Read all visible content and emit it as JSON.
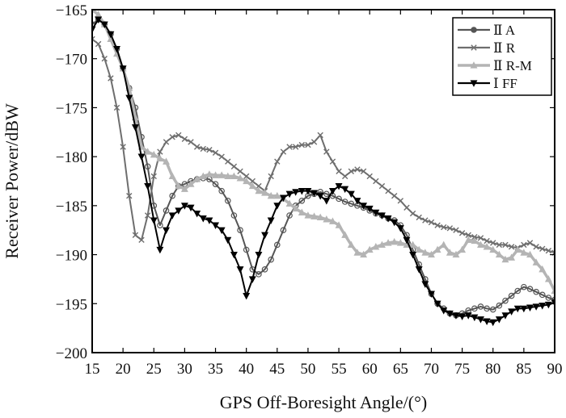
{
  "chart_data": {
    "type": "line",
    "xlabel": "GPS Off-Boresight Angle/(°)",
    "ylabel": "Receiver Power/dBW",
    "xlim": [
      15,
      90
    ],
    "ylim": [
      -200,
      -165
    ],
    "x_ticks": [
      "15",
      "20",
      "25",
      "30",
      "35",
      "40",
      "45",
      "50",
      "55",
      "60",
      "65",
      "70",
      "75",
      "80",
      "85",
      "90"
    ],
    "y_ticks": [
      "-165",
      "-170",
      "-175",
      "-180",
      "-185",
      "-190",
      "-195",
      "-200"
    ],
    "grid": false,
    "legend": "top-right",
    "series": [
      {
        "name": "Ⅱ A",
        "color": "#555555",
        "marker": "circle",
        "x": [
          15,
          16,
          17,
          18,
          19,
          20,
          21,
          22,
          23,
          24,
          25,
          26,
          27,
          28,
          29,
          30,
          31,
          32,
          33,
          34,
          35,
          36,
          37,
          38,
          39,
          40,
          41,
          42,
          43,
          44,
          45,
          46,
          47,
          48,
          49,
          50,
          51,
          52,
          53,
          54,
          55,
          56,
          57,
          58,
          59,
          60,
          61,
          62,
          63,
          64,
          65,
          66,
          67,
          68,
          69,
          70,
          71,
          72,
          73,
          74,
          75,
          76,
          77,
          78,
          79,
          80,
          81,
          82,
          83,
          84,
          85,
          86,
          87,
          88,
          89,
          90
        ],
        "y": [
          -166.5,
          -166,
          -166.5,
          -167.5,
          -169,
          -171,
          -173,
          -175,
          -178,
          -181,
          -185,
          -187,
          -185.5,
          -184,
          -183,
          -182.8,
          -182.5,
          -182.3,
          -182.2,
          -182.3,
          -182.8,
          -183.5,
          -184.5,
          -186,
          -187.5,
          -189.5,
          -191.5,
          -192,
          -191.5,
          -190.5,
          -189,
          -187.5,
          -186,
          -185,
          -184.5,
          -184,
          -183.8,
          -183.6,
          -183.8,
          -184,
          -184.3,
          -184.6,
          -184.8,
          -185,
          -185.2,
          -185.5,
          -185.8,
          -186,
          -186.3,
          -186.5,
          -187,
          -188,
          -189.5,
          -191,
          -192.5,
          -194,
          -195,
          -195.5,
          -196,
          -196.2,
          -196,
          -195.7,
          -195.5,
          -195.3,
          -195.5,
          -195.6,
          -195.2,
          -194.7,
          -194.2,
          -193.7,
          -193.3,
          -193.5,
          -193.8,
          -194.1,
          -194.4,
          -194.6
        ]
      },
      {
        "name": "Ⅱ R",
        "color": "#6e6e6e",
        "marker": "x",
        "x": [
          15,
          16,
          17,
          18,
          19,
          20,
          21,
          22,
          23,
          24,
          25,
          26,
          27,
          28,
          29,
          30,
          31,
          32,
          33,
          34,
          35,
          36,
          37,
          38,
          39,
          40,
          41,
          42,
          43,
          44,
          45,
          46,
          47,
          48,
          49,
          50,
          51,
          52,
          53,
          54,
          55,
          56,
          57,
          58,
          59,
          60,
          61,
          62,
          63,
          64,
          65,
          66,
          67,
          68,
          69,
          70,
          71,
          72,
          73,
          74,
          75,
          76,
          77,
          78,
          79,
          80,
          81,
          82,
          83,
          84,
          85,
          86,
          87,
          88,
          89,
          90
        ],
        "y": [
          -168,
          -168.5,
          -170,
          -172,
          -175,
          -179,
          -184,
          -188,
          -188.5,
          -186,
          -182,
          -179.5,
          -178.5,
          -178,
          -177.8,
          -178.2,
          -178.5,
          -179,
          -179.2,
          -179.3,
          -179.6,
          -180,
          -180.5,
          -181,
          -181.5,
          -182,
          -182.5,
          -183,
          -183.5,
          -182,
          -180.5,
          -179.5,
          -179,
          -179,
          -178.8,
          -178.8,
          -178.5,
          -177.8,
          -179.5,
          -180.5,
          -181.5,
          -182,
          -181.5,
          -181.3,
          -181.5,
          -182,
          -182.5,
          -183,
          -183.5,
          -184,
          -184.5,
          -185.2,
          -185.8,
          -186.2,
          -186.5,
          -186.7,
          -187,
          -187.2,
          -187.3,
          -187.5,
          -187.8,
          -188,
          -188.2,
          -188.3,
          -188.6,
          -188.8,
          -189,
          -189,
          -189.2,
          -189.3,
          -189,
          -188.8,
          -189.2,
          -189.4,
          -189.6,
          -189.8
        ]
      },
      {
        "name": "Ⅱ R-M",
        "color": "#b4b4b4",
        "marker": "triangle",
        "x": [
          15,
          16,
          17,
          18,
          19,
          20,
          21,
          22,
          23,
          24,
          25,
          26,
          27,
          28,
          29,
          30,
          31,
          32,
          33,
          34,
          35,
          36,
          37,
          38,
          39,
          40,
          41,
          42,
          43,
          44,
          45,
          46,
          47,
          48,
          49,
          50,
          51,
          52,
          53,
          54,
          55,
          56,
          57,
          58,
          59,
          60,
          61,
          62,
          63,
          64,
          65,
          66,
          67,
          68,
          69,
          70,
          71,
          72,
          73,
          74,
          75,
          76,
          77,
          78,
          79,
          80,
          81,
          82,
          83,
          84,
          85,
          86,
          87,
          88,
          89,
          90
        ],
        "y": [
          -165,
          -165.5,
          -166.5,
          -168,
          -169.5,
          -171,
          -173,
          -176,
          -179,
          -179.5,
          -179.8,
          -180.2,
          -180.5,
          -182,
          -183,
          -183.3,
          -182.8,
          -182.3,
          -182,
          -181.8,
          -181.9,
          -181.9,
          -182,
          -182,
          -182.2,
          -182.5,
          -183,
          -183.5,
          -183.7,
          -184,
          -184,
          -184.3,
          -184.8,
          -185.3,
          -185.7,
          -186,
          -186.1,
          -186.2,
          -186.4,
          -186.6,
          -187,
          -188,
          -189,
          -189.8,
          -190,
          -189.5,
          -189.2,
          -189,
          -188.8,
          -188.7,
          -188.8,
          -189,
          -189,
          -189.5,
          -189.8,
          -190,
          -189.5,
          -189,
          -189.8,
          -190,
          -189.5,
          -188.5,
          -188.6,
          -189,
          -189.2,
          -189.5,
          -190,
          -190.5,
          -190.3,
          -189.5,
          -189.8,
          -190,
          -190.8,
          -191.5,
          -192.5,
          -193.7
        ]
      },
      {
        "name": "Ⅰ FF",
        "color": "#000000",
        "marker": "triangle-down",
        "x": [
          15,
          16,
          17,
          18,
          19,
          20,
          21,
          22,
          23,
          24,
          25,
          26,
          27,
          28,
          29,
          30,
          31,
          32,
          33,
          34,
          35,
          36,
          37,
          38,
          39,
          40,
          41,
          42,
          43,
          44,
          45,
          46,
          47,
          48,
          49,
          50,
          51,
          52,
          53,
          54,
          55,
          56,
          57,
          58,
          59,
          60,
          61,
          62,
          63,
          64,
          65,
          66,
          67,
          68,
          69,
          70,
          71,
          72,
          73,
          74,
          75,
          76,
          77,
          78,
          79,
          80,
          81,
          82,
          83,
          84,
          85,
          86,
          87,
          88,
          89,
          90
        ],
        "y": [
          -167,
          -166,
          -166.5,
          -167.5,
          -169,
          -171,
          -174,
          -177,
          -180,
          -183,
          -186.5,
          -189.5,
          -187.5,
          -186,
          -185.5,
          -185,
          -185.2,
          -185.8,
          -186.3,
          -186.5,
          -187,
          -187.5,
          -188.5,
          -190,
          -191.5,
          -194.2,
          -192.5,
          -190,
          -188,
          -186.5,
          -185,
          -184.2,
          -183.8,
          -183.6,
          -183.5,
          -183.5,
          -183.7,
          -184,
          -184.5,
          -183.5,
          -183,
          -183.3,
          -183.8,
          -184.5,
          -185,
          -185.3,
          -185.7,
          -186,
          -186.3,
          -186.7,
          -187.3,
          -188.5,
          -190,
          -191.5,
          -193,
          -194,
          -195,
          -195.7,
          -196,
          -196.2,
          -196.3,
          -196.2,
          -196.4,
          -196.6,
          -196.8,
          -196.9,
          -196.6,
          -196.2,
          -195.8,
          -195.5,
          -195.5,
          -195.4,
          -195.3,
          -195.2,
          -195.1,
          -194.9
        ]
      }
    ]
  }
}
